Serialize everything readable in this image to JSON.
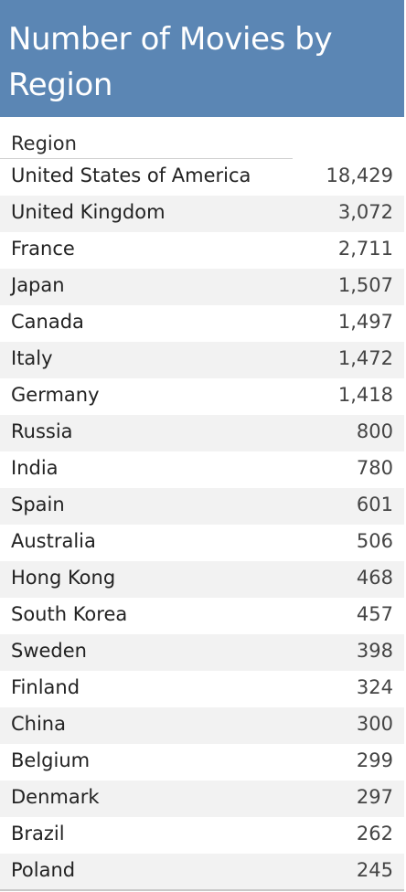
{
  "chart_data": {
    "type": "table",
    "title": "Number of Movies by Region",
    "header": "Region",
    "rows": [
      {
        "region": "United States of America",
        "value": "18,429"
      },
      {
        "region": "United Kingdom",
        "value": "3,072"
      },
      {
        "region": "France",
        "value": "2,711"
      },
      {
        "region": "Japan",
        "value": "1,507"
      },
      {
        "region": "Canada",
        "value": "1,497"
      },
      {
        "region": "Italy",
        "value": "1,472"
      },
      {
        "region": "Germany",
        "value": "1,418"
      },
      {
        "region": "Russia",
        "value": "800"
      },
      {
        "region": "India",
        "value": "780"
      },
      {
        "region": "Spain",
        "value": "601"
      },
      {
        "region": "Australia",
        "value": "506"
      },
      {
        "region": "Hong Kong",
        "value": "468"
      },
      {
        "region": "South Korea",
        "value": "457"
      },
      {
        "region": "Sweden",
        "value": "398"
      },
      {
        "region": "Finland",
        "value": "324"
      },
      {
        "region": "China",
        "value": "300"
      },
      {
        "region": "Belgium",
        "value": "299"
      },
      {
        "region": "Denmark",
        "value": "297"
      },
      {
        "region": "Brazil",
        "value": "262"
      },
      {
        "region": "Poland",
        "value": "245"
      }
    ],
    "colors": {
      "title_background": "#5b86b4",
      "title_text": "#ffffff",
      "alt_row_background": "#f2f2f2"
    }
  }
}
